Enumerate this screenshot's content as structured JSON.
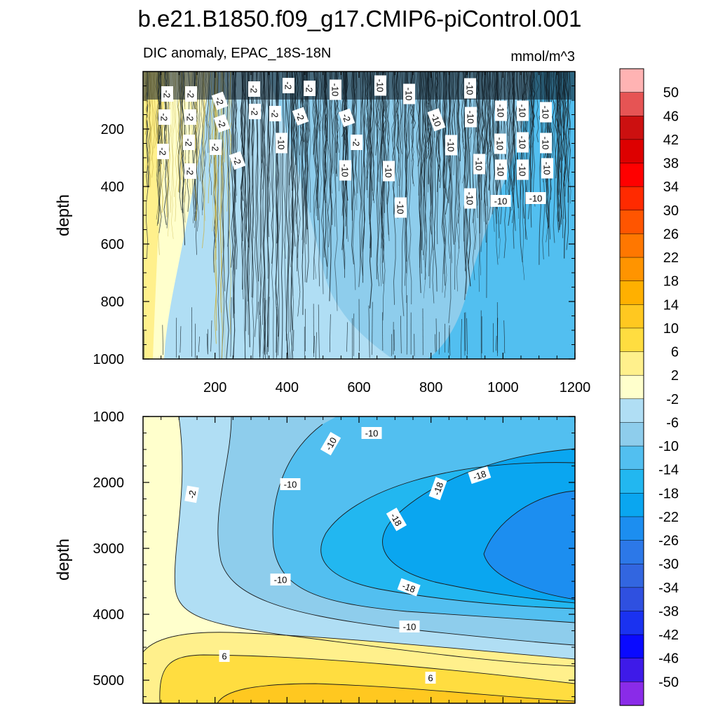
{
  "figure": {
    "title": "b.e21.B1850.f09_g17.CMIP6-piControl.001",
    "left_string": "DIC anomaly, EPAC_18S-18N",
    "right_string": "mmol/m^3"
  },
  "chart_data": [
    {
      "type": "contour",
      "panel": "upper",
      "title": "DIC anomaly, EPAC_18S-18N",
      "units": "mmol/m^3",
      "xlabel": "",
      "ylabel": "depth",
      "xlim": [
        0,
        1200
      ],
      "ylim": [
        1000,
        0
      ],
      "x_ticks": [
        200,
        400,
        600,
        800,
        1000,
        1200
      ],
      "y_ticks": [
        200,
        400,
        600,
        800,
        1000
      ],
      "regions": [
        {
          "level": "2 to 6",
          "x_extent": [
            0,
            60
          ]
        },
        {
          "level": "-2 to 2",
          "x_extent": [
            60,
            120
          ]
        },
        {
          "level": "-6 to -2",
          "x_extent": [
            120,
            1000
          ]
        },
        {
          "level": "-10 to -6",
          "x_extent": [
            340,
            1000
          ]
        },
        {
          "level": "-14 to -10",
          "x_extent": [
            900,
            1200
          ]
        }
      ],
      "contour_labels": [
        "-2",
        "-2",
        "-2",
        "-2",
        "-2",
        "-2",
        "-2",
        "-2",
        "-2",
        "-2",
        "-2",
        "-2",
        "-2",
        "-2",
        "-2",
        "-2",
        "-2",
        "-2",
        "-2",
        "-10",
        "-10",
        "-10",
        "-10",
        "-10",
        "-10",
        "-10",
        "-10",
        "-10",
        "-10",
        "-10",
        "-10",
        "-10",
        "-10",
        "-10",
        "-10",
        "-10",
        "-10",
        "-10",
        "-10",
        "-10",
        "-10",
        "-10",
        "-10"
      ]
    },
    {
      "type": "contour",
      "panel": "lower",
      "xlabel": "",
      "ylabel": "depth",
      "xlim": [
        0,
        1200
      ],
      "ylim": [
        5350,
        1000
      ],
      "y_ticks": [
        1000,
        2000,
        3000,
        4000,
        5000
      ],
      "contour_labels": [
        "-10",
        "-10",
        "-10",
        "-10",
        "-10",
        "-18",
        "-18",
        "-18",
        "-18",
        "-2",
        "6",
        "6"
      ]
    }
  ],
  "colorbar": {
    "labels": [
      "50",
      "46",
      "42",
      "38",
      "34",
      "30",
      "26",
      "22",
      "18",
      "14",
      "10",
      "6",
      "2",
      "-2",
      "-6",
      "-10",
      "-14",
      "-18",
      "-22",
      "-26",
      "-30",
      "-34",
      "-38",
      "-42",
      "-46",
      "-50"
    ],
    "colors": [
      "#ffb3b3",
      "#e65454",
      "#cc1010",
      "#dd0000",
      "#ff0000",
      "#ff2a00",
      "#ff5500",
      "#ff7700",
      "#ff9400",
      "#ffb000",
      "#ffc820",
      "#ffdd40",
      "#fff08c",
      "#ffffcc",
      "#b0def4",
      "#8ecdec",
      "#52bff0",
      "#22b7f0",
      "#0aa6f0",
      "#1c8ef0",
      "#2c78e8",
      "#3266e0",
      "#2f50e0",
      "#1a32f0",
      "#0a0aff",
      "#3e1ae8",
      "#8a2be8"
    ]
  },
  "colors": {
    "warm_pale": "#ffffcc",
    "warm_yellow": "#fff08c",
    "warm_gold": "#ffdd40",
    "warm_amber": "#ffc820",
    "cool_pale": "#b0def4",
    "cool_light": "#8ecdec",
    "cool_mid": "#52bff0",
    "cool_bright": "#22b7f0",
    "cool_deep": "#0aa6f0",
    "cool_core": "#1c8ef0"
  }
}
